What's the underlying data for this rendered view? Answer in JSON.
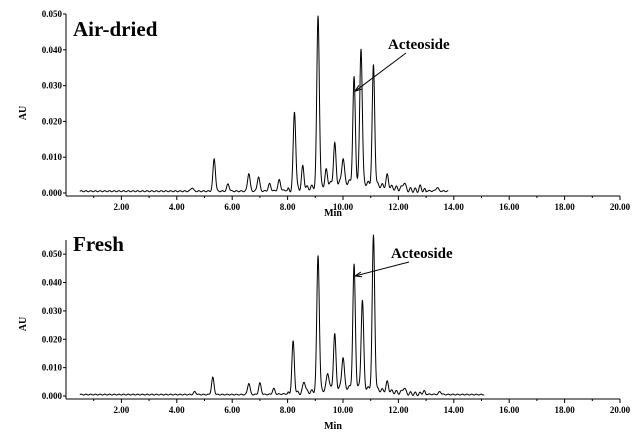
{
  "chart_data": [
    {
      "type": "line",
      "title": "Air-dried",
      "xlabel": "Min",
      "ylabel": "AU",
      "xlim": [
        0,
        20
      ],
      "ylim": [
        0,
        0.05
      ],
      "x_ticks": [
        "2.00",
        "4.00",
        "6.00",
        "8.00",
        "10.00",
        "12.00",
        "14.00",
        "16.00",
        "18.00",
        "20.00"
      ],
      "y_ticks": [
        "0.000",
        "0.010",
        "0.020",
        "0.030",
        "0.040",
        "0.050"
      ],
      "grid": false,
      "line_color": "#000000",
      "trace_end_min": 13.8,
      "baseline_au": 0.0005,
      "peaks": [
        {
          "rt": 4.55,
          "au": 0.001
        },
        {
          "rt": 5.35,
          "au": 0.009
        },
        {
          "rt": 5.85,
          "au": 0.002
        },
        {
          "rt": 6.6,
          "au": 0.005
        },
        {
          "rt": 6.95,
          "au": 0.004
        },
        {
          "rt": 7.35,
          "au": 0.002
        },
        {
          "rt": 7.7,
          "au": 0.003
        },
        {
          "rt": 8.25,
          "au": 0.022
        },
        {
          "rt": 8.55,
          "au": 0.006
        },
        {
          "rt": 9.1,
          "au": 0.048
        },
        {
          "rt": 9.4,
          "au": 0.004
        },
        {
          "rt": 9.7,
          "au": 0.011
        },
        {
          "rt": 10.0,
          "au": 0.007
        },
        {
          "rt": 10.4,
          "au": 0.029
        },
        {
          "rt": 10.65,
          "au": 0.038
        },
        {
          "rt": 11.1,
          "au": 0.033
        },
        {
          "rt": 11.6,
          "au": 0.003
        },
        {
          "rt": 12.2,
          "au": 0.002
        },
        {
          "rt": 12.8,
          "au": 0.001
        },
        {
          "rt": 13.4,
          "au": 0.001
        }
      ],
      "annotations": [
        {
          "text": "Acteoside",
          "rt": 10.4,
          "au": 0.029
        }
      ]
    },
    {
      "type": "line",
      "title": "Fresh",
      "xlabel": "Min",
      "ylabel": "AU",
      "xlim": [
        0,
        20
      ],
      "ylim": [
        0,
        0.055
      ],
      "x_ticks": [
        "2.00",
        "4.00",
        "6.00",
        "8.00",
        "10.00",
        "12.00",
        "14.00",
        "16.00",
        "18.00",
        "20.00"
      ],
      "y_ticks": [
        "0.000",
        "0.010",
        "0.020",
        "0.030",
        "0.040",
        "0.050"
      ],
      "grid": false,
      "line_color": "#000000",
      "trace_end_min": 15.1,
      "baseline_au": 0.0005,
      "peaks": [
        {
          "rt": 4.65,
          "au": 0.001
        },
        {
          "rt": 5.3,
          "au": 0.006
        },
        {
          "rt": 6.6,
          "au": 0.004
        },
        {
          "rt": 7.0,
          "au": 0.004
        },
        {
          "rt": 7.5,
          "au": 0.002
        },
        {
          "rt": 8.2,
          "au": 0.018
        },
        {
          "rt": 8.6,
          "au": 0.004
        },
        {
          "rt": 9.1,
          "au": 0.048
        },
        {
          "rt": 9.45,
          "au": 0.006
        },
        {
          "rt": 9.7,
          "au": 0.019
        },
        {
          "rt": 10.0,
          "au": 0.011
        },
        {
          "rt": 10.4,
          "au": 0.043
        },
        {
          "rt": 10.7,
          "au": 0.031
        },
        {
          "rt": 11.1,
          "au": 0.054
        },
        {
          "rt": 11.6,
          "au": 0.003
        },
        {
          "rt": 12.2,
          "au": 0.002
        },
        {
          "rt": 12.9,
          "au": 0.001
        },
        {
          "rt": 13.5,
          "au": 0.001
        }
      ],
      "annotations": [
        {
          "text": "Acteoside",
          "rt": 10.4,
          "au": 0.043
        }
      ]
    }
  ]
}
